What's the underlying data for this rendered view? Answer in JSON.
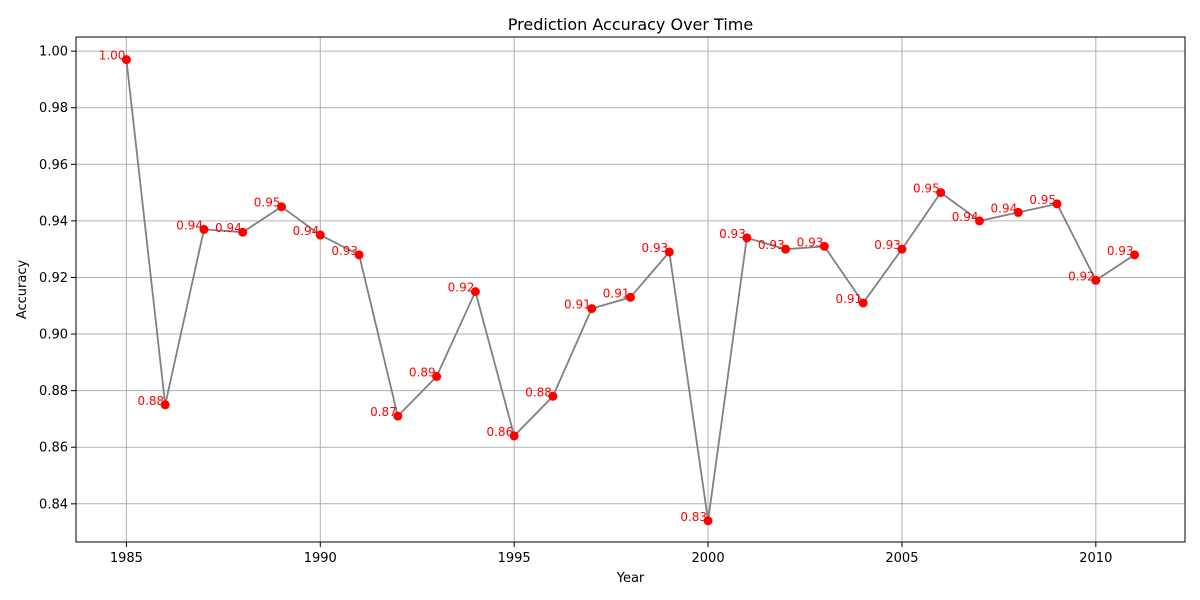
{
  "chart_data": {
    "type": "line",
    "title": "Prediction Accuracy Over Time",
    "xlabel": "Year",
    "ylabel": "Accuracy",
    "xlim": [
      1983.7,
      2012.3
    ],
    "ylim": [
      0.8265,
      1.005
    ],
    "xticks": [
      1985,
      1990,
      1995,
      2000,
      2005,
      2010
    ],
    "yticks": [
      0.84,
      0.86,
      0.88,
      0.9,
      0.92,
      0.94,
      0.96,
      0.98,
      1.0
    ],
    "ytick_labels": [
      "0.84",
      "0.86",
      "0.88",
      "0.90",
      "0.92",
      "0.94",
      "0.96",
      "0.98",
      "1.00"
    ],
    "grid": true,
    "line_color": "#808080",
    "marker_color": "#ff0000",
    "label_color": "#ff0000",
    "x": [
      1985,
      1986,
      1987,
      1988,
      1989,
      1990,
      1991,
      1992,
      1993,
      1994,
      1995,
      1996,
      1997,
      1998,
      1999,
      2000,
      2001,
      2002,
      2003,
      2004,
      2005,
      2006,
      2007,
      2008,
      2009,
      2010,
      2011
    ],
    "y": [
      0.997,
      0.875,
      0.937,
      0.936,
      0.945,
      0.935,
      0.928,
      0.871,
      0.885,
      0.915,
      0.864,
      0.878,
      0.909,
      0.913,
      0.929,
      0.834,
      0.934,
      0.93,
      0.931,
      0.911,
      0.93,
      0.95,
      0.94,
      0.943,
      0.946,
      0.919,
      0.928
    ],
    "data_labels": [
      "1.00",
      "0.88",
      "0.94",
      "0.94",
      "0.95",
      "0.94",
      "0.93",
      "0.87",
      "0.89",
      "0.92",
      "0.86",
      "0.88",
      "0.91",
      "0.91",
      "0.93",
      "0.83",
      "0.93",
      "0.93",
      "0.93",
      "0.91",
      "0.93",
      "0.95",
      "0.94",
      "0.94",
      "0.95",
      "0.92",
      "0.93"
    ]
  }
}
